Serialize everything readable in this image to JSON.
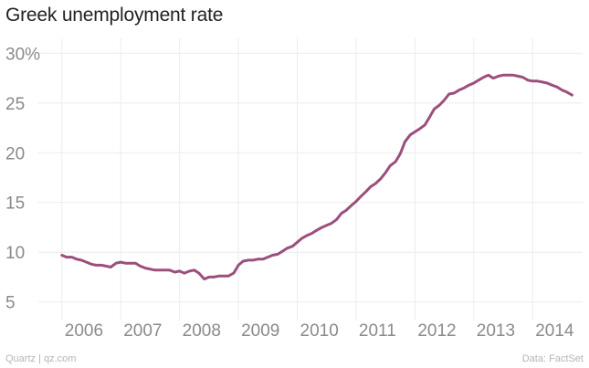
{
  "header": {
    "title": "Greek unemployment rate"
  },
  "footer": {
    "source_left": "Quartz | qz.com",
    "source_right": "Data: FactSet"
  },
  "colors": {
    "line": "#9c4f7c",
    "grid": "#ececec",
    "axis_text": "#8a8a8a"
  },
  "chart_data": {
    "type": "line",
    "title": "Greek unemployment rate",
    "xlabel": "",
    "ylabel": "",
    "ylim": [
      3.5,
      31.5
    ],
    "xlim": [
      2005.6,
      2014.85
    ],
    "y_ticks": [
      5,
      10,
      15,
      20,
      25,
      30
    ],
    "y_tick_labels": [
      "5",
      "10",
      "15",
      "20",
      "25",
      "30%"
    ],
    "x_ticks": [
      2006,
      2007,
      2008,
      2009,
      2010,
      2011,
      2012,
      2013,
      2014
    ],
    "x_tick_labels": [
      "2006",
      "2007",
      "2008",
      "2009",
      "2010",
      "2011",
      "2012",
      "2013",
      "2014"
    ],
    "grid": true,
    "series": [
      {
        "name": "Greek unemployment rate",
        "x": [
          2006.0,
          2006.08,
          2006.17,
          2006.25,
          2006.33,
          2006.42,
          2006.5,
          2006.58,
          2006.67,
          2006.75,
          2006.83,
          2006.92,
          2007.0,
          2007.08,
          2007.17,
          2007.25,
          2007.33,
          2007.42,
          2007.5,
          2007.58,
          2007.67,
          2007.75,
          2007.83,
          2007.92,
          2008.0,
          2008.08,
          2008.17,
          2008.25,
          2008.33,
          2008.42,
          2008.5,
          2008.58,
          2008.67,
          2008.75,
          2008.83,
          2008.92,
          2009.0,
          2009.08,
          2009.17,
          2009.25,
          2009.33,
          2009.42,
          2009.5,
          2009.58,
          2009.67,
          2009.75,
          2009.83,
          2009.92,
          2010.0,
          2010.08,
          2010.17,
          2010.25,
          2010.33,
          2010.42,
          2010.5,
          2010.58,
          2010.67,
          2010.75,
          2010.83,
          2010.92,
          2011.0,
          2011.08,
          2011.17,
          2011.25,
          2011.33,
          2011.42,
          2011.5,
          2011.58,
          2011.67,
          2011.75,
          2011.83,
          2011.92,
          2012.0,
          2012.08,
          2012.17,
          2012.25,
          2012.33,
          2012.42,
          2012.5,
          2012.58,
          2012.67,
          2012.75,
          2012.83,
          2012.92,
          2013.0,
          2013.08,
          2013.17,
          2013.25,
          2013.33,
          2013.42,
          2013.5,
          2013.58,
          2013.67,
          2013.75,
          2013.83,
          2013.92,
          2014.0,
          2014.08,
          2014.17,
          2014.25,
          2014.33,
          2014.42,
          2014.5,
          2014.58,
          2014.67
        ],
        "values": [
          9.7,
          9.5,
          9.5,
          9.3,
          9.2,
          9.0,
          8.8,
          8.7,
          8.7,
          8.6,
          8.5,
          8.9,
          9.0,
          8.9,
          8.9,
          8.9,
          8.6,
          8.4,
          8.3,
          8.2,
          8.2,
          8.2,
          8.2,
          8.0,
          8.1,
          7.9,
          8.1,
          8.2,
          7.9,
          7.3,
          7.5,
          7.5,
          7.6,
          7.6,
          7.6,
          7.9,
          8.7,
          9.1,
          9.2,
          9.2,
          9.3,
          9.3,
          9.5,
          9.7,
          9.8,
          10.1,
          10.4,
          10.6,
          11.0,
          11.4,
          11.7,
          11.9,
          12.2,
          12.5,
          12.7,
          12.9,
          13.3,
          13.9,
          14.2,
          14.7,
          15.1,
          15.6,
          16.1,
          16.6,
          16.9,
          17.4,
          18.0,
          18.7,
          19.1,
          19.9,
          21.1,
          21.8,
          22.1,
          22.4,
          22.8,
          23.6,
          24.4,
          24.8,
          25.3,
          25.9,
          26.0,
          26.3,
          26.5,
          26.8,
          27.0,
          27.3,
          27.6,
          27.8,
          27.5,
          27.7,
          27.8,
          27.8,
          27.8,
          27.7,
          27.6,
          27.3,
          27.2,
          27.2,
          27.1,
          27.0,
          26.8,
          26.6,
          26.3,
          26.1,
          25.8
        ]
      }
    ]
  }
}
